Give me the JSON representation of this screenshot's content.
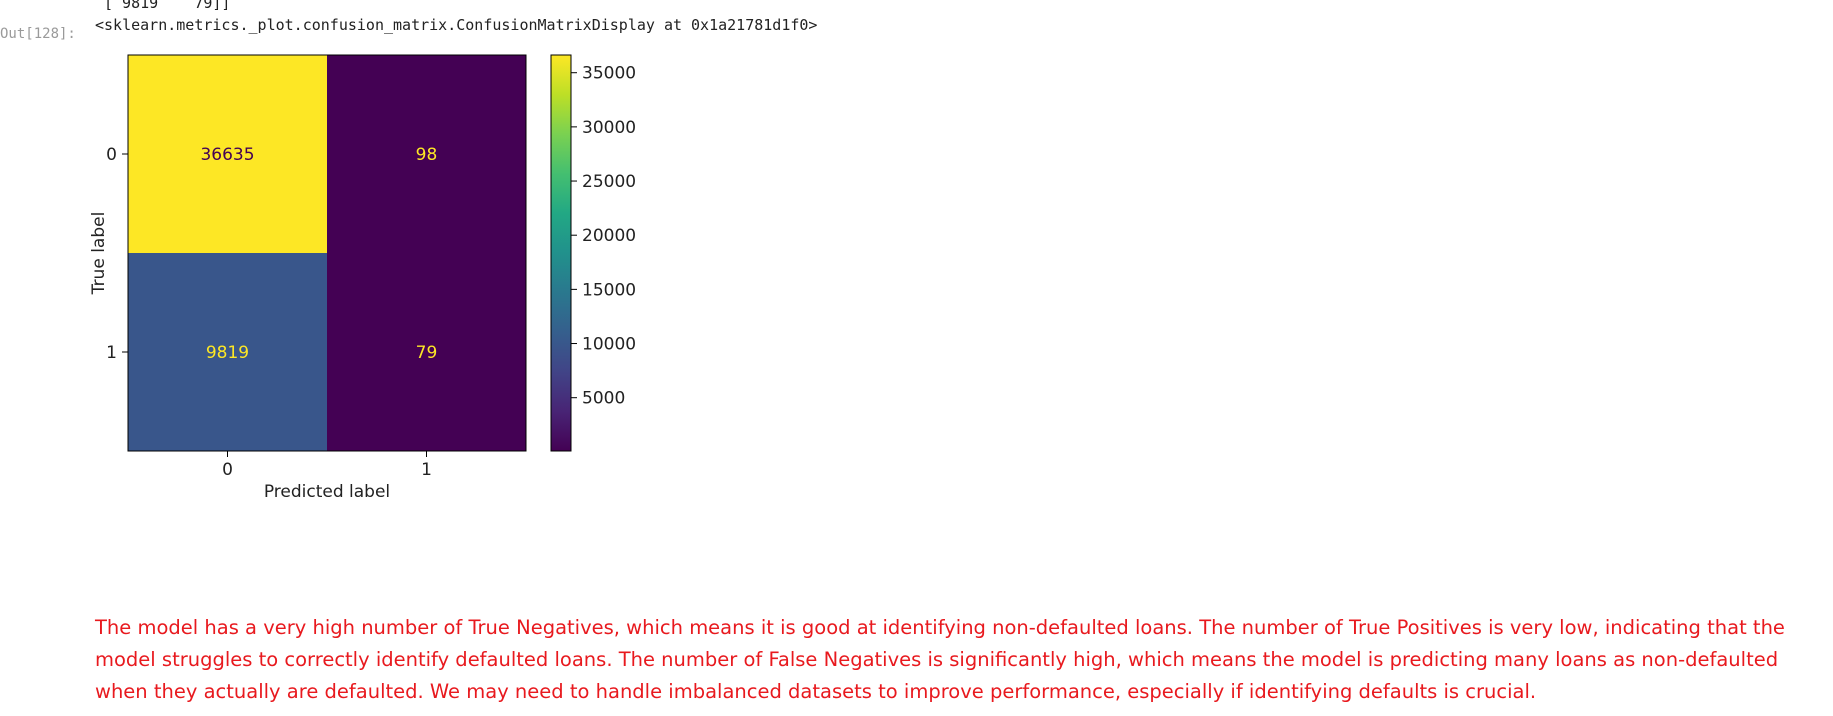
{
  "cell": {
    "previous_output_tail": "[ 9819    79]]",
    "output_prompt": "Out[128]:",
    "output_repr": "<sklearn.metrics._plot.confusion_matrix.ConfusionMatrixDisplay at 0x1a21781d1f0>"
  },
  "chart_data": {
    "type": "heatmap",
    "xlabel": "Predicted label",
    "ylabel": "True label",
    "x_categories": [
      "0",
      "1"
    ],
    "y_categories": [
      "0",
      "1"
    ],
    "matrix": [
      [
        36635,
        98
      ],
      [
        9819,
        79
      ]
    ],
    "colormap": "viridis",
    "colorbar": {
      "range": [
        79,
        36635
      ],
      "ticks": [
        5000,
        10000,
        15000,
        20000,
        25000,
        30000,
        35000
      ]
    },
    "grid": false
  },
  "commentary": "The model has a very high number of True Negatives, which means it is good at identifying non-defaulted loans. The number of True Positives is very low, indicating that the model struggles to correctly identify defaulted loans. The number of False Negatives is significantly high, which means the model is predicting many loans as non-defaulted when they actually are defaulted. We may need to handle imbalanced datasets to improve performance, especially if identifying defaults is crucial.",
  "colors": {
    "commentary_text": "#e8191e",
    "viridis_low": "#440154",
    "viridis_high": "#fde725"
  }
}
